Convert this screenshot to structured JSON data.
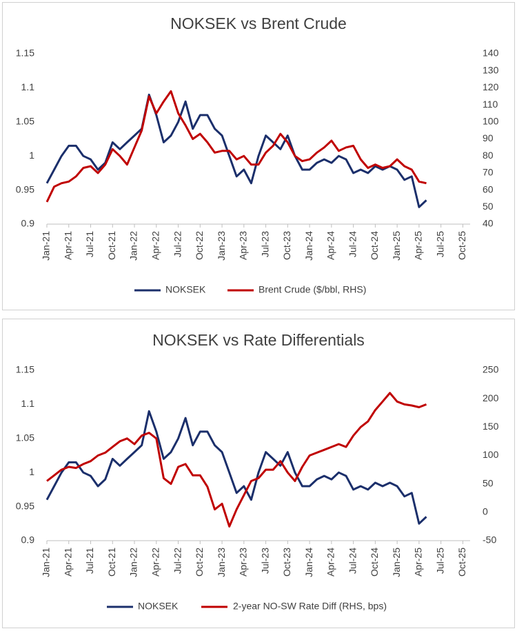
{
  "chart_data": [
    {
      "type": "line",
      "title": "NOKSEK vs Brent Crude",
      "x": [
        "2021-01",
        "2021-02",
        "2021-03",
        "2021-04",
        "2021-05",
        "2021-06",
        "2021-07",
        "2021-08",
        "2021-09",
        "2021-10",
        "2021-11",
        "2021-12",
        "2022-01",
        "2022-02",
        "2022-03",
        "2022-04",
        "2022-05",
        "2022-06",
        "2022-07",
        "2022-08",
        "2022-09",
        "2022-10",
        "2022-11",
        "2022-12",
        "2023-01",
        "2023-02",
        "2023-03",
        "2023-04",
        "2023-05",
        "2023-06",
        "2023-07",
        "2023-08",
        "2023-09",
        "2023-10",
        "2023-11",
        "2023-12",
        "2024-01",
        "2024-02",
        "2024-03",
        "2024-04",
        "2024-05",
        "2024-06",
        "2024-07",
        "2024-08",
        "2024-09",
        "2024-10",
        "2024-11",
        "2024-12",
        "2025-01",
        "2025-02",
        "2025-03",
        "2025-04",
        "2025-05"
      ],
      "xlim": [
        "2021-01",
        "2025-11"
      ],
      "xticks": [
        {
          "value": "2021-01",
          "label": "Jan-21"
        },
        {
          "value": "2021-04",
          "label": "Apr-21"
        },
        {
          "value": "2021-07",
          "label": "Jul-21"
        },
        {
          "value": "2021-10",
          "label": "Oct-21"
        },
        {
          "value": "2022-01",
          "label": "Jan-22"
        },
        {
          "value": "2022-04",
          "label": "Apr-22"
        },
        {
          "value": "2022-07",
          "label": "Jul-22"
        },
        {
          "value": "2022-10",
          "label": "Oct-22"
        },
        {
          "value": "2023-01",
          "label": "Jan-23"
        },
        {
          "value": "2023-04",
          "label": "Apr-23"
        },
        {
          "value": "2023-07",
          "label": "Jul-23"
        },
        {
          "value": "2023-10",
          "label": "Oct-23"
        },
        {
          "value": "2024-01",
          "label": "Jan-24"
        },
        {
          "value": "2024-04",
          "label": "Apr-24"
        },
        {
          "value": "2024-07",
          "label": "Jul-24"
        },
        {
          "value": "2024-10",
          "label": "Oct-24"
        },
        {
          "value": "2025-01",
          "label": "Jan-25"
        },
        {
          "value": "2025-04",
          "label": "Apr-25"
        },
        {
          "value": "2025-07",
          "label": "Jul-25"
        },
        {
          "value": "2025-10",
          "label": "Oct-25"
        }
      ],
      "ylim": [
        0.9,
        1.15
      ],
      "yticks": [
        0.9,
        0.95,
        1,
        1.05,
        1.1,
        1.15
      ],
      "y2lim": [
        40,
        140
      ],
      "y2ticks": [
        40,
        50,
        60,
        70,
        80,
        90,
        100,
        110,
        120,
        130,
        140
      ],
      "legend": "bottom",
      "series": [
        {
          "name": "NOKSEK",
          "color": "#1b2f6b",
          "values": [
            0.96,
            0.98,
            1.0,
            1.015,
            1.015,
            1.0,
            0.995,
            0.98,
            0.99,
            1.02,
            1.01,
            1.02,
            1.03,
            1.04,
            1.09,
            1.06,
            1.02,
            1.03,
            1.05,
            1.08,
            1.04,
            1.06,
            1.06,
            1.04,
            1.03,
            1.0,
            0.97,
            0.98,
            0.96,
            1.0,
            1.03,
            1.02,
            1.01,
            1.03,
            1.0,
            0.98,
            0.98,
            0.99,
            0.995,
            0.99,
            1.0,
            0.995,
            0.975,
            0.98,
            0.975,
            0.985,
            0.98,
            0.985,
            0.98,
            0.965,
            0.97,
            0.925,
            0.935
          ]
        },
        {
          "name": "Brent Crude ($/bbl, RHS)",
          "color": "#c00000",
          "axis": "y2",
          "values": [
            53,
            62,
            64,
            65,
            68,
            73,
            74,
            70,
            75,
            84,
            80,
            75,
            85,
            95,
            115,
            105,
            112,
            118,
            105,
            98,
            90,
            93,
            88,
            82,
            83,
            83,
            78,
            80,
            75,
            75,
            82,
            86,
            93,
            88,
            80,
            77,
            78,
            82,
            85,
            89,
            83,
            85,
            86,
            78,
            73,
            75,
            73,
            74,
            78,
            74,
            72,
            65,
            64
          ]
        }
      ]
    },
    {
      "type": "line",
      "title": "NOKSEK vs Rate Differentials",
      "x": [
        "2021-01",
        "2021-02",
        "2021-03",
        "2021-04",
        "2021-05",
        "2021-06",
        "2021-07",
        "2021-08",
        "2021-09",
        "2021-10",
        "2021-11",
        "2021-12",
        "2022-01",
        "2022-02",
        "2022-03",
        "2022-04",
        "2022-05",
        "2022-06",
        "2022-07",
        "2022-08",
        "2022-09",
        "2022-10",
        "2022-11",
        "2022-12",
        "2023-01",
        "2023-02",
        "2023-03",
        "2023-04",
        "2023-05",
        "2023-06",
        "2023-07",
        "2023-08",
        "2023-09",
        "2023-10",
        "2023-11",
        "2023-12",
        "2024-01",
        "2024-02",
        "2024-03",
        "2024-04",
        "2024-05",
        "2024-06",
        "2024-07",
        "2024-08",
        "2024-09",
        "2024-10",
        "2024-11",
        "2024-12",
        "2025-01",
        "2025-02",
        "2025-03",
        "2025-04",
        "2025-05"
      ],
      "xlim": [
        "2021-01",
        "2025-11"
      ],
      "xticks": [
        {
          "value": "2021-01",
          "label": "Jan-21"
        },
        {
          "value": "2021-04",
          "label": "Apr-21"
        },
        {
          "value": "2021-07",
          "label": "Jul-21"
        },
        {
          "value": "2021-10",
          "label": "Oct-21"
        },
        {
          "value": "2022-01",
          "label": "Jan-22"
        },
        {
          "value": "2022-04",
          "label": "Apr-22"
        },
        {
          "value": "2022-07",
          "label": "Jul-22"
        },
        {
          "value": "2022-10",
          "label": "Oct-22"
        },
        {
          "value": "2023-01",
          "label": "Jan-23"
        },
        {
          "value": "2023-04",
          "label": "Apr-23"
        },
        {
          "value": "2023-07",
          "label": "Jul-23"
        },
        {
          "value": "2023-10",
          "label": "Oct-23"
        },
        {
          "value": "2024-01",
          "label": "Jan-24"
        },
        {
          "value": "2024-04",
          "label": "Apr-24"
        },
        {
          "value": "2024-07",
          "label": "Jul-24"
        },
        {
          "value": "2024-10",
          "label": "Oct-24"
        },
        {
          "value": "2025-01",
          "label": "Jan-25"
        },
        {
          "value": "2025-04",
          "label": "Apr-25"
        },
        {
          "value": "2025-07",
          "label": "Jul-25"
        },
        {
          "value": "2025-10",
          "label": "Oct-25"
        }
      ],
      "ylim": [
        0.9,
        1.15
      ],
      "yticks": [
        0.9,
        0.95,
        1,
        1.05,
        1.1,
        1.15
      ],
      "y2lim": [
        -50,
        250
      ],
      "y2ticks": [
        -50,
        0,
        50,
        100,
        150,
        200,
        250
      ],
      "legend": "bottom",
      "series": [
        {
          "name": "NOKSEK",
          "color": "#1b2f6b",
          "values": [
            0.96,
            0.98,
            1.0,
            1.015,
            1.015,
            1.0,
            0.995,
            0.98,
            0.99,
            1.02,
            1.01,
            1.02,
            1.03,
            1.04,
            1.09,
            1.06,
            1.02,
            1.03,
            1.05,
            1.08,
            1.04,
            1.06,
            1.06,
            1.04,
            1.03,
            1.0,
            0.97,
            0.98,
            0.96,
            1.0,
            1.03,
            1.02,
            1.01,
            1.03,
            1.0,
            0.98,
            0.98,
            0.99,
            0.995,
            0.99,
            1.0,
            0.995,
            0.975,
            0.98,
            0.975,
            0.985,
            0.98,
            0.985,
            0.98,
            0.965,
            0.97,
            0.925,
            0.935
          ]
        },
        {
          "name": "2-year NO-SW Rate Diff (RHS, bps)",
          "color": "#c00000",
          "axis": "y2",
          "values": [
            55,
            65,
            75,
            80,
            78,
            85,
            90,
            100,
            105,
            115,
            125,
            130,
            120,
            135,
            140,
            130,
            60,
            50,
            80,
            85,
            65,
            65,
            45,
            5,
            15,
            -25,
            5,
            30,
            55,
            60,
            75,
            75,
            90,
            70,
            55,
            80,
            100,
            105,
            110,
            115,
            120,
            115,
            135,
            150,
            160,
            180,
            195,
            210,
            195,
            190,
            188,
            185,
            190
          ]
        }
      ]
    }
  ]
}
